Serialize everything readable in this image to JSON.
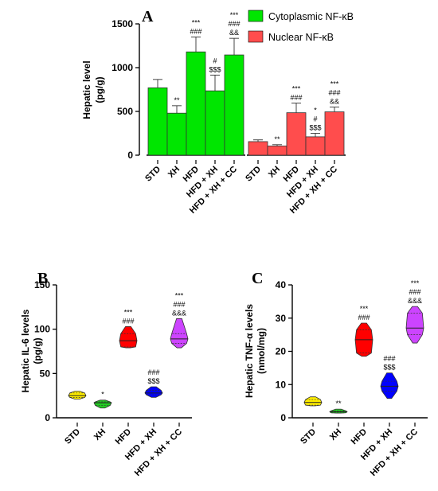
{
  "chart_data": [
    {
      "panel": "A",
      "type": "bar",
      "ylabel": [
        "Hepatic level",
        "(pg/g)"
      ],
      "ylim": [
        0,
        1500
      ],
      "yticks": [
        "0",
        "500",
        "1000",
        "1500"
      ],
      "legend_position": "top-right",
      "groups": [
        {
          "series": "Cytoplasmic NF-κB",
          "color": "#00e600",
          "categories": [
            "STD",
            "XH",
            "HFD",
            "HFD + XH",
            "HFD + XH + CC"
          ],
          "values": [
            770,
            480,
            1180,
            735,
            1145
          ],
          "errors": [
            95,
            85,
            170,
            180,
            190
          ],
          "annotations": [
            [],
            [
              "**"
            ],
            [
              "***",
              "###"
            ],
            [
              "#",
              "$$$"
            ],
            [
              "***",
              "###",
              "&&"
            ]
          ]
        },
        {
          "series": "Nuclear NF-κB",
          "color": "#ff4d4d",
          "categories": [
            "STD",
            "XH",
            "HFD",
            "HFD + XH",
            "HFD + XH + CC"
          ],
          "values": [
            155,
            105,
            485,
            210,
            495
          ],
          "errors": [
            20,
            15,
            110,
            40,
            55
          ],
          "annotations": [
            [],
            [
              "**"
            ],
            [
              "***",
              "###"
            ],
            [
              "*",
              "#",
              "$$$"
            ],
            [
              "***",
              "###",
              "&&"
            ]
          ]
        }
      ]
    },
    {
      "panel": "B",
      "type": "violin",
      "ylabel": [
        "Hepatic IL-6 levels",
        "(pg/g)"
      ],
      "ylim": [
        0,
        150
      ],
      "yticks": [
        "0",
        "50",
        "100",
        "150"
      ],
      "categories": [
        "STD",
        "XH",
        "HFD",
        "HFD + XH",
        "HFD + XH + CC"
      ],
      "colors": [
        "#ffee00",
        "#22cc22",
        "#ff0000",
        "#0000ff",
        "#cc44ff"
      ],
      "min": [
        21,
        11,
        79,
        23,
        79
      ],
      "q1": [
        23,
        14,
        80,
        26,
        84
      ],
      "median": [
        25,
        17,
        87,
        28,
        89
      ],
      "q3": [
        28,
        18,
        95,
        31,
        95
      ],
      "max": [
        30,
        20,
        103,
        35,
        112
      ],
      "annotations": [
        [],
        [
          "*"
        ],
        [
          "***",
          "###"
        ],
        [
          "###",
          "$$$"
        ],
        [
          "***",
          "###",
          "&&&"
        ]
      ]
    },
    {
      "panel": "C",
      "type": "violin",
      "ylabel": [
        "Hepatic TNF-α levels",
        "(nmol/mg)"
      ],
      "ylim": [
        0,
        40
      ],
      "yticks": [
        "0",
        "10",
        "20",
        "30",
        "40"
      ],
      "categories": [
        "STD",
        "XH",
        "HFD",
        "HFD + XH",
        "HFD + XH + CC"
      ],
      "colors": [
        "#ffee00",
        "#22cc22",
        "#ff0000",
        "#0000ff",
        "#cc44ff"
      ],
      "min": [
        3.6,
        1.4,
        18.5,
        5.8,
        22.5
      ],
      "q1": [
        3.8,
        1.5,
        19.5,
        8.0,
        25.0
      ],
      "median": [
        4.6,
        1.8,
        23.5,
        9.5,
        27.0
      ],
      "q3": [
        5.5,
        2.1,
        26.5,
        11.0,
        31.5
      ],
      "max": [
        6.3,
        2.6,
        28.5,
        13.5,
        33.5
      ],
      "annotations": [
        [],
        [
          "**"
        ],
        [
          "***",
          "###"
        ],
        [
          "###",
          "$$$"
        ],
        [
          "***",
          "###",
          "&&&"
        ]
      ]
    }
  ]
}
